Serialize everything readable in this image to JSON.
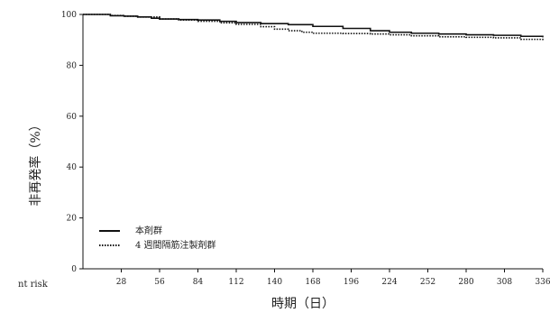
{
  "chart_data": {
    "type": "line",
    "title": "",
    "xlabel": "時期（日）",
    "ylabel": "非再発率（%）",
    "xlim": [
      0,
      336
    ],
    "ylim": [
      0,
      100
    ],
    "x_ticks": [
      28,
      56,
      84,
      112,
      140,
      168,
      196,
      224,
      252,
      280,
      308,
      336
    ],
    "y_ticks": [
      0,
      20,
      40,
      60,
      80,
      100
    ],
    "grid": false,
    "legend_position": "bottom-left",
    "series": [
      {
        "name": "本剤群",
        "style": "solid",
        "color": "#111111",
        "x": [
          0,
          10,
          20,
          30,
          40,
          50,
          56,
          70,
          84,
          100,
          112,
          130,
          150,
          168,
          190,
          210,
          224,
          240,
          260,
          280,
          300,
          320,
          336
        ],
        "y": [
          100,
          100,
          99.5,
          99.3,
          99,
          98.5,
          98.2,
          98,
          97.8,
          97.3,
          96.8,
          96.4,
          96,
          95.3,
          94.5,
          93.6,
          93,
          92.6,
          92.3,
          92,
          91.8,
          91.4,
          91
        ]
      },
      {
        "name": "4 週間隔筋注製剤群",
        "style": "dotted",
        "color": "#111111",
        "x": [
          0,
          10,
          20,
          30,
          40,
          56,
          70,
          84,
          100,
          112,
          130,
          140,
          150,
          160,
          168,
          190,
          210,
          224,
          240,
          260,
          280,
          300,
          320,
          336
        ],
        "y": [
          100,
          100,
          99.6,
          99.3,
          99,
          98.2,
          97.8,
          97.3,
          96.7,
          96.1,
          95.2,
          94.2,
          93.6,
          93,
          92.6,
          92.5,
          92.3,
          92,
          91.6,
          91.2,
          91,
          90.8,
          90.2,
          89.8
        ]
      }
    ]
  },
  "footer": {
    "truncated_text": "nt risk"
  }
}
